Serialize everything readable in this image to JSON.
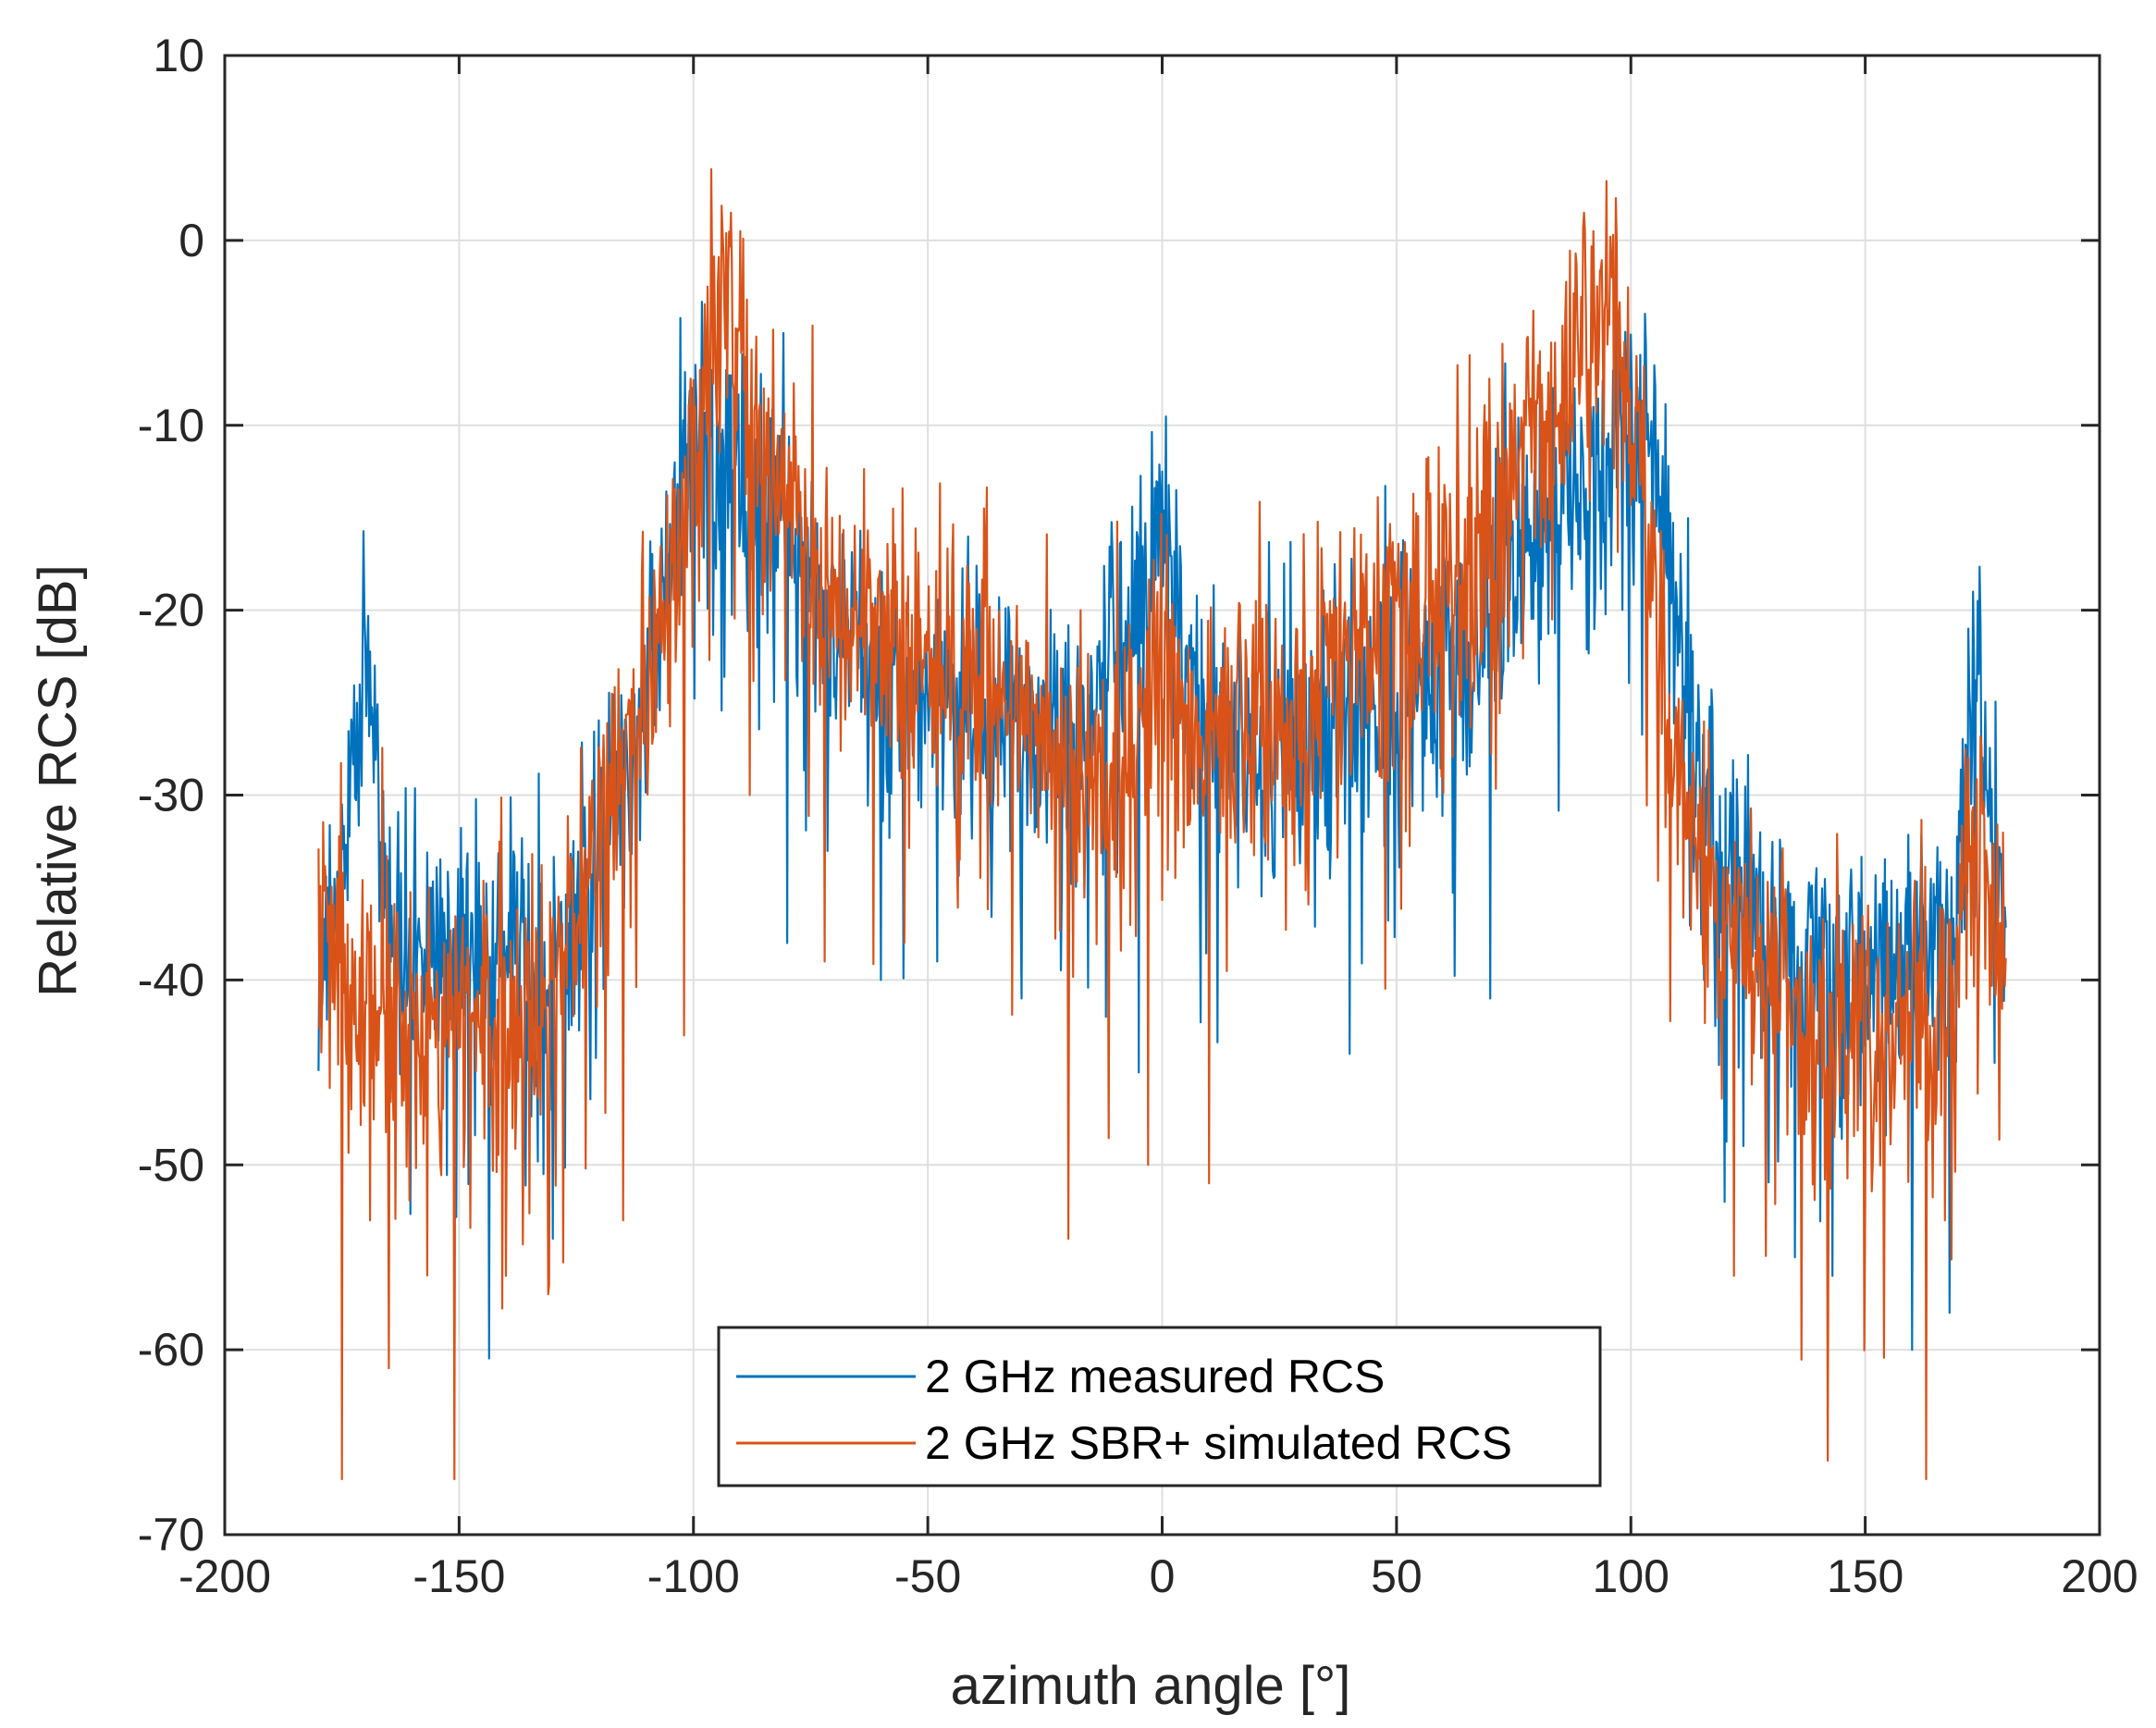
{
  "chart_data": {
    "type": "line",
    "title": "",
    "xlabel": "azimuth angle [°]",
    "ylabel": "Relative RCS [dB]",
    "xlim": [
      -200,
      200
    ],
    "ylim": [
      -70,
      10
    ],
    "xticks": [
      -200,
      -150,
      -100,
      -50,
      0,
      50,
      100,
      150,
      200
    ],
    "yticks": [
      10,
      0,
      -10,
      -20,
      -30,
      -40,
      -50,
      -60,
      -70
    ],
    "xtick_labels": [
      "-200",
      "-150",
      "-100",
      "-50",
      "0",
      "50",
      "100",
      "150",
      "200"
    ],
    "ytick_labels": [
      "10",
      "0",
      "-10",
      "-20",
      "-30",
      "-40",
      "-50",
      "-60",
      "-70"
    ],
    "grid": true,
    "legend_position": "bottom-center",
    "series": [
      {
        "name": "2 GHz measured RCS",
        "color": "#0072BD",
        "envelope": {
          "x": [
            -180,
            -177,
            -174,
            -172,
            -170,
            -168,
            -165,
            -160,
            -155,
            -150,
            -145,
            -140,
            -135,
            -130,
            -125,
            -120,
            -115,
            -110,
            -106,
            -104,
            -102,
            -100,
            -98,
            -96,
            -94,
            -92,
            -90,
            -88,
            -85,
            -80,
            -75,
            -70,
            -65,
            -60,
            -55,
            -50,
            -45,
            -40,
            -35,
            -30,
            -25,
            -20,
            -15,
            -12,
            -10,
            -8,
            -5,
            -3,
            -1,
            0,
            1,
            2,
            4,
            6,
            8,
            10,
            12,
            15,
            20,
            25,
            30,
            35,
            40,
            45,
            50,
            55,
            60,
            65,
            70,
            75,
            80,
            85,
            88,
            90,
            92,
            94,
            96,
            98,
            100,
            102,
            104,
            106,
            108,
            110,
            112,
            115,
            120,
            125,
            130,
            135,
            140,
            145,
            150,
            155,
            160,
            165,
            168,
            170,
            172,
            174,
            176,
            178,
            180
          ],
          "y": [
            -35,
            -36,
            -34,
            -27,
            -24,
            -28,
            -36,
            -38,
            -38,
            -38,
            -38,
            -38,
            -39,
            -40,
            -38,
            -33,
            -28,
            -24,
            -18,
            -15,
            -13,
            -11,
            -10,
            -11,
            -12,
            -12,
            -13,
            -13,
            -13,
            -15,
            -19,
            -21,
            -22,
            -23,
            -24,
            -24,
            -25,
            -25,
            -25,
            -26,
            -27,
            -28,
            -25,
            -22,
            -21,
            -22,
            -19,
            -17,
            -15,
            -15,
            -17,
            -19,
            -21,
            -22,
            -24,
            -25,
            -26,
            -27,
            -28,
            -27,
            -27,
            -26,
            -25,
            -24,
            -24,
            -23,
            -22,
            -21,
            -19,
            -17,
            -15,
            -14,
            -13,
            -13,
            -12,
            -12,
            -12,
            -11,
            -11,
            -11,
            -12,
            -14,
            -17,
            -20,
            -24,
            -29,
            -33,
            -35,
            -37,
            -38,
            -39,
            -40,
            -40,
            -39,
            -38,
            -39,
            -38,
            -34,
            -27,
            -24,
            -27,
            -34,
            -38
          ]
        },
        "features": {
          "peak_x": [
            -96,
            -93,
            -104,
            -2,
            0,
            3,
            88,
            92,
            99,
            101,
            173,
            172,
            174
          ],
          "peak_y": [
            -7,
            -7,
            -12,
            -17,
            -12.5,
            -13.5,
            -8,
            -9,
            -10,
            -9,
            -19,
            -21,
            -19.5
          ],
          "dip_x": [
            -151,
            -165,
            -130,
            -80,
            -60,
            -48,
            -30,
            -12,
            -5,
            40,
            70,
            120,
            135,
            143,
            160,
            168
          ],
          "dip_y": [
            -63,
            -56,
            -54,
            -38,
            -40,
            -39,
            -41,
            -42,
            -45,
            -44,
            -41,
            -52,
            -55,
            -56,
            -60,
            -58
          ]
        }
      },
      {
        "name": "2 GHz SBR+ simulated RCS",
        "color": "#D95319",
        "envelope": {
          "x": [
            -180,
            -177,
            -174,
            -172,
            -170,
            -168,
            -165,
            -160,
            -155,
            -150,
            -145,
            -140,
            -135,
            -130,
            -125,
            -120,
            -115,
            -110,
            -106,
            -104,
            -102,
            -100,
            -98,
            -96,
            -94,
            -92,
            -90,
            -88,
            -85,
            -80,
            -75,
            -70,
            -65,
            -60,
            -55,
            -50,
            -45,
            -40,
            -35,
            -30,
            -25,
            -20,
            -15,
            -12,
            -10,
            -8,
            -5,
            -3,
            -1,
            0,
            1,
            2,
            4,
            6,
            8,
            10,
            12,
            15,
            20,
            25,
            30,
            35,
            40,
            45,
            50,
            55,
            60,
            65,
            70,
            75,
            80,
            85,
            88,
            90,
            92,
            94,
            96,
            98,
            100,
            102,
            104,
            106,
            108,
            110,
            112,
            115,
            120,
            125,
            130,
            135,
            140,
            145,
            150,
            155,
            160,
            165,
            168,
            170,
            172,
            174,
            176,
            178,
            180
          ],
          "y": [
            -36,
            -37,
            -38,
            -40,
            -42,
            -42,
            -42,
            -42,
            -43,
            -43,
            -42,
            -42,
            -41,
            -40,
            -37,
            -32,
            -27,
            -25,
            -21,
            -18,
            -15,
            -12,
            -9,
            -6,
            -4,
            -4,
            -6,
            -10,
            -12,
            -14,
            -18,
            -20,
            -21,
            -21,
            -22,
            -23,
            -23,
            -24,
            -24,
            -25,
            -27,
            -28,
            -29,
            -29,
            -29,
            -28,
            -25,
            -23,
            -22,
            -22,
            -23,
            -24,
            -26,
            -27,
            -27,
            -26,
            -26,
            -25,
            -25,
            -25,
            -24,
            -23,
            -22,
            -21,
            -20,
            -19,
            -18,
            -17,
            -15,
            -12,
            -10,
            -8,
            -6,
            -4,
            -3,
            -4,
            -5,
            -7,
            -9,
            -12,
            -16,
            -21,
            -25,
            -28,
            -31,
            -33,
            -36,
            -38,
            -40,
            -41,
            -42,
            -43,
            -43,
            -43,
            -43,
            -42,
            -40,
            -37,
            -33,
            -32,
            -34,
            -37,
            -38
          ]
        },
        "features": {
          "peak_x": [
            -92,
            -90,
            -97,
            90,
            92,
            96,
            -85,
            -78,
            172,
            175
          ],
          "peak_y": [
            1.5,
            0.5,
            -2.5,
            1.5,
            0.5,
            -2,
            -8,
            -15,
            -28,
            -31
          ],
          "dip_x": [
            -175,
            -165,
            -151,
            -140,
            -131,
            -115,
            -102,
            -88,
            -72,
            -55,
            -20,
            -3,
            10,
            122,
            142,
            150,
            163,
            167
          ],
          "dip_y": [
            -67,
            -61,
            -67,
            -56,
            -57,
            -53,
            -43,
            -30,
            -39,
            -38,
            -54,
            -50,
            -51,
            -56,
            -66,
            -52,
            -67,
            -53
          ]
        }
      }
    ]
  },
  "legend": {
    "items": [
      {
        "label": "2 GHz measured RCS",
        "color": "#0072BD"
      },
      {
        "label": "2 GHz SBR+ simulated RCS",
        "color": "#D95319"
      }
    ]
  },
  "colors": {
    "axis": "#262626",
    "grid": "#DFDFDF",
    "background": "#FFFFFF"
  }
}
